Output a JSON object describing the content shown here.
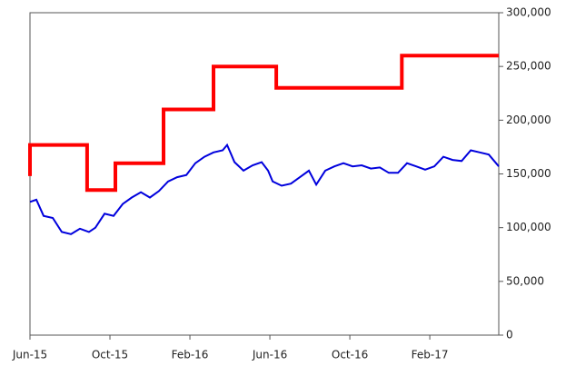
{
  "chart_data": {
    "type": "line",
    "xlim": [
      0,
      23.45
    ],
    "xticks": [
      {
        "value": 0,
        "label": "Jun-15"
      },
      {
        "value": 4,
        "label": "Oct-15"
      },
      {
        "value": 8,
        "label": "Feb-16"
      },
      {
        "value": 12,
        "label": "Jun-16"
      },
      {
        "value": 16,
        "label": "Oct-16"
      },
      {
        "value": 20,
        "label": "Feb-17"
      }
    ],
    "ylim": [
      0,
      300000
    ],
    "yticks": [
      0,
      {
        "value": 50000,
        "label": "50,000"
      },
      {
        "value": 100000,
        "label": "100,000"
      },
      {
        "value": 150000,
        "label": "150,000"
      },
      {
        "value": 200000,
        "label": "200,000"
      },
      {
        "value": 250000,
        "label": "250,000"
      },
      {
        "value": 300000,
        "label": "300,000"
      }
    ],
    "y_axis_side": "right",
    "grid": false,
    "series": [
      {
        "color": "#ff0000",
        "width": 4,
        "x": [
          0,
          0,
          2.86,
          2.86,
          4.27,
          4.27,
          6.68,
          6.68,
          9.18,
          9.18,
          12.32,
          12.32,
          18.6,
          18.6,
          23.45
        ],
        "values": [
          148000,
          177000,
          177000,
          135000,
          135000,
          160000,
          160000,
          210000,
          210000,
          250000,
          250000,
          230000,
          230000,
          260000,
          260000
        ]
      },
      {
        "color": "#0000dd",
        "width": 2,
        "x": [
          0,
          0.32,
          0.68,
          1.14,
          1.59,
          2.05,
          2.5,
          2.95,
          3.27,
          3.73,
          4.18,
          4.64,
          5.09,
          5.55,
          6,
          6.45,
          6.91,
          7.36,
          7.82,
          8.27,
          8.73,
          9.18,
          9.64,
          9.86,
          10.23,
          10.68,
          11.14,
          11.59,
          11.91,
          12.14,
          12.59,
          13.05,
          13.5,
          13.95,
          14.32,
          14.77,
          15.23,
          15.68,
          16.14,
          16.59,
          17.05,
          17.5,
          17.95,
          18.41,
          18.86,
          19.32,
          19.77,
          20.23,
          20.68,
          21.14,
          21.59,
          22.05,
          22.5,
          22.95,
          23.45
        ],
        "values": [
          124000,
          126000,
          111000,
          109000,
          96000,
          94000,
          99000,
          96000,
          100000,
          113000,
          111000,
          122000,
          128000,
          133000,
          128000,
          134000,
          143000,
          147000,
          149000,
          160000,
          166000,
          170000,
          172000,
          177000,
          161000,
          153000,
          158000,
          161000,
          153000,
          143000,
          139000,
          141000,
          147000,
          153000,
          140000,
          153000,
          157000,
          160000,
          157000,
          158000,
          155000,
          156000,
          151000,
          151000,
          160000,
          157000,
          154000,
          157000,
          166000,
          163000,
          162000,
          172000,
          170000,
          168000,
          157000
        ]
      }
    ]
  }
}
